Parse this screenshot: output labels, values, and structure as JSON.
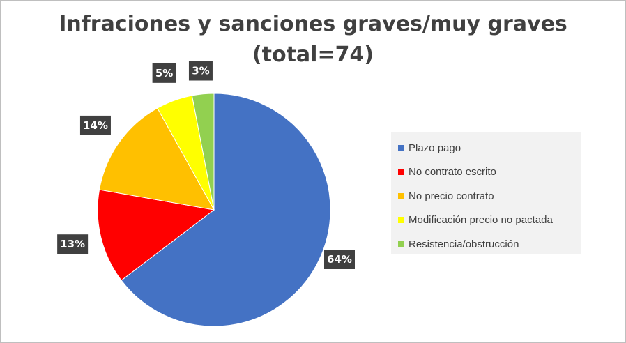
{
  "chart_data": {
    "type": "pie",
    "title_line1": "Infraciones y sanciones graves/muy graves",
    "title_line2": "(total=74)",
    "start_angle_deg": 0,
    "direction": "clockwise",
    "slices": [
      {
        "name": "Plazo pago",
        "value": 64,
        "label": "64%",
        "color": "#4472c4"
      },
      {
        "name": "No contrato escrito",
        "value": 13,
        "label": "13%",
        "color": "#ff0000"
      },
      {
        "name": "No precio contrato",
        "value": 14,
        "label": "14%",
        "color": "#ffc000"
      },
      {
        "name": "Modificación precio no pactada",
        "value": 5,
        "label": "5%",
        "color": "#ffff00"
      },
      {
        "name": "Resistencia/obstrucción",
        "value": 3,
        "label": "3%",
        "color": "#92d050"
      }
    ],
    "legend": {
      "position": "right"
    },
    "data_label_style": {
      "background": "#404040",
      "text_color": "#ffffff"
    }
  }
}
